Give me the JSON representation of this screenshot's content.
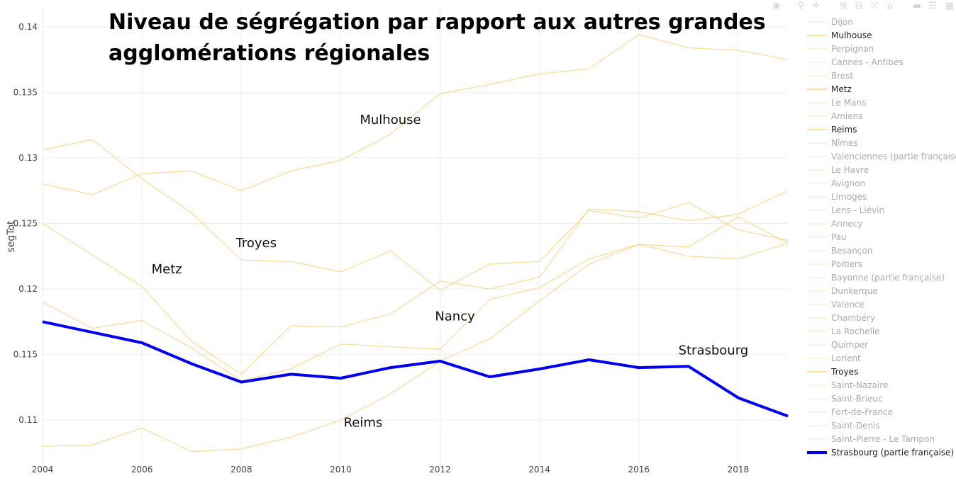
{
  "chart_data": {
    "type": "line",
    "title": "Niveau de ségrégation par rapport aux autres grandes agglomérations régionales",
    "title_lines": [
      "Niveau de ségrégation par rapport aux autres grandes",
      "agglomérations régionales"
    ],
    "ylabel": "segTot",
    "xlabel": "",
    "xlim": [
      2004,
      2019
    ],
    "ylim": [
      0.1065,
      0.1415
    ],
    "x_ticks": [
      2004,
      2006,
      2008,
      2010,
      2012,
      2014,
      2016,
      2018
    ],
    "y_ticks": [
      0.11,
      0.115,
      0.12,
      0.125,
      0.13,
      0.135,
      0.14
    ],
    "grid": true,
    "legend_position": "right",
    "x": [
      2004,
      2005,
      2006,
      2007,
      2008,
      2009,
      2010,
      2011,
      2012,
      2013,
      2014,
      2015,
      2016,
      2017,
      2018,
      2019
    ],
    "colors": {
      "faint": "#ffe4b5",
      "highlight": "#ffc966",
      "strasbourg": "#0000ee",
      "legend_faint_text": "#aaaaaa",
      "legend_highlight_text": "#222222"
    },
    "series": [
      {
        "name": "Dijon",
        "highlight": false
      },
      {
        "name": "Mulhouse",
        "highlight": true,
        "values": [
          0.128,
          0.1272,
          0.1288,
          0.129,
          0.1275,
          0.129,
          0.1298,
          0.1318,
          0.1349,
          0.1356,
          0.1364,
          0.1368,
          0.1394,
          0.1384,
          0.1382,
          0.1375
        ]
      },
      {
        "name": "Perpignan",
        "highlight": false
      },
      {
        "name": "Cannes - Antibes",
        "highlight": false
      },
      {
        "name": "Brest",
        "highlight": false
      },
      {
        "name": "Metz",
        "highlight": true,
        "values": [
          0.125,
          0.1226,
          0.1202,
          0.116,
          0.1135,
          0.1172,
          0.1171,
          0.1181,
          0.1206,
          0.12,
          0.1209,
          0.1261,
          0.1259,
          0.1252,
          0.1257,
          0.1275
        ]
      },
      {
        "name": "Le Mans",
        "highlight": false
      },
      {
        "name": "Amiens",
        "highlight": false
      },
      {
        "name": "Reims",
        "highlight": true,
        "values": [
          0.108,
          0.1081,
          0.1094,
          0.1076,
          0.1078,
          0.1087,
          0.11,
          0.112,
          0.1145,
          0.1162,
          0.1191,
          0.1219,
          0.1234,
          0.1225,
          0.1223,
          0.1235
        ]
      },
      {
        "name": "Nîmes",
        "highlight": false
      },
      {
        "name": "Valenciennes (partie française)",
        "highlight": false
      },
      {
        "name": "Le Havre",
        "highlight": false
      },
      {
        "name": "Avignon",
        "highlight": false
      },
      {
        "name": "Limoges",
        "highlight": false
      },
      {
        "name": "Lens - Liévin",
        "highlight": false
      },
      {
        "name": "Annecy",
        "highlight": false
      },
      {
        "name": "Pau",
        "highlight": false
      },
      {
        "name": "Besançon",
        "highlight": false
      },
      {
        "name": "Poitiers",
        "highlight": false
      },
      {
        "name": "Bayonne (partie française)",
        "highlight": false
      },
      {
        "name": "Dunkerque",
        "highlight": false
      },
      {
        "name": "Valence",
        "highlight": false
      },
      {
        "name": "Chambéry",
        "highlight": false
      },
      {
        "name": "La Rochelle",
        "highlight": false
      },
      {
        "name": "Quimper",
        "highlight": false
      },
      {
        "name": "Lorient",
        "highlight": false
      },
      {
        "name": "Troyes",
        "highlight": true,
        "values": [
          0.1306,
          0.1314,
          0.1284,
          0.1258,
          0.1222,
          0.1221,
          0.1213,
          0.1229,
          0.1199,
          0.1219,
          0.1221,
          0.126,
          0.1254,
          0.1266,
          0.1245,
          0.1237
        ]
      },
      {
        "name": "Saint-Nazaire",
        "highlight": false
      },
      {
        "name": "Saint-Brieuc",
        "highlight": false
      },
      {
        "name": "Fort-de-France",
        "highlight": false
      },
      {
        "name": "Saint-Denis",
        "highlight": false
      },
      {
        "name": "Saint-Pierre - Le Tampon",
        "highlight": false
      },
      {
        "name": "Strasbourg (partie française)",
        "highlight": false,
        "main": true,
        "values": [
          0.1175,
          0.1167,
          0.1159,
          0.1143,
          0.1129,
          0.1135,
          0.1132,
          0.114,
          0.1145,
          0.1133,
          0.1139,
          0.1146,
          0.114,
          0.1141,
          0.1117,
          0.1103
        ]
      }
    ],
    "nancy_values": [
      0.119,
      0.117,
      0.1176,
      0.1155,
      0.113,
      0.1139,
      0.1158,
      0.1156,
      0.1154,
      0.1192,
      0.1201,
      0.1223,
      0.1234,
      0.1232,
      0.1255,
      0.1235
    ],
    "annotations": [
      {
        "text": "Mulhouse",
        "x": 2011.0,
        "y": 0.1326
      },
      {
        "text": "Troyes",
        "x": 2008.3,
        "y": 0.1232
      },
      {
        "text": "Metz",
        "x": 2006.5,
        "y": 0.1212
      },
      {
        "text": "Nancy",
        "x": 2012.3,
        "y": 0.1176
      },
      {
        "text": "Strasbourg",
        "x": 2017.5,
        "y": 0.115
      },
      {
        "text": "Reims",
        "x": 2010.45,
        "y": 0.1095
      }
    ]
  },
  "modebar": {
    "icons": [
      "camera-icon",
      "zoom-icon",
      "pan-icon",
      "zoom-in-icon",
      "zoom-out-icon",
      "autoscale-icon",
      "home-icon",
      "spike-lines-icon",
      "compare-icon",
      "plotly-logo-icon"
    ]
  }
}
